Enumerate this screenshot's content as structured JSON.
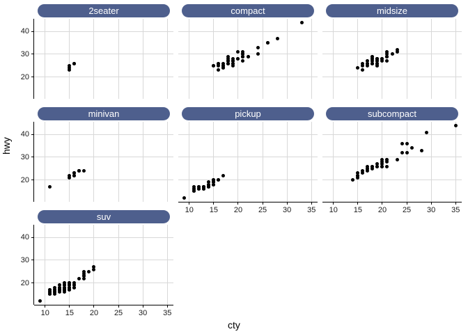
{
  "chart_data": {
    "type": "scatter",
    "title": "",
    "xlabel": "cty",
    "ylabel": "hwy",
    "x_domain": [
      7.76,
      36.24
    ],
    "y_domain": [
      10.4,
      45.6
    ],
    "x_ticks": [
      10,
      15,
      20,
      25,
      30,
      35
    ],
    "y_ticks": [
      20,
      30,
      40
    ],
    "grid": "major-only",
    "legend_position": "none",
    "facet_columns": 3,
    "colors": {
      "strip_bg": "#4e5f8d",
      "strip_text": "#ffffff",
      "gridline": "#d8d8d8",
      "axis_line": "#000000",
      "tick_label": "#1a1a1a",
      "point": "#000000",
      "panel_bg": "#ffffff",
      "background": "#ffffff"
    },
    "facets": [
      {
        "label": "2seater",
        "show_x_axis": false,
        "show_y_axis": true,
        "points": [
          [
            15,
            23
          ],
          [
            15,
            24
          ],
          [
            15,
            25
          ],
          [
            16,
            26
          ],
          [
            16,
            26
          ]
        ]
      },
      {
        "label": "compact",
        "show_x_axis": false,
        "show_y_axis": false,
        "points": [
          [
            15,
            25
          ],
          [
            15,
            25
          ],
          [
            16,
            23
          ],
          [
            16,
            25
          ],
          [
            16,
            26
          ],
          [
            16,
            26
          ],
          [
            17,
            24
          ],
          [
            17,
            24
          ],
          [
            17,
            25
          ],
          [
            17,
            25
          ],
          [
            17,
            25
          ],
          [
            17,
            26
          ],
          [
            18,
            26
          ],
          [
            18,
            26
          ],
          [
            18,
            26
          ],
          [
            18,
            27
          ],
          [
            18,
            27
          ],
          [
            18,
            27
          ],
          [
            18,
            28
          ],
          [
            18,
            29
          ],
          [
            19,
            25
          ],
          [
            19,
            26
          ],
          [
            19,
            26
          ],
          [
            19,
            27
          ],
          [
            19,
            27
          ],
          [
            19,
            27
          ],
          [
            19,
            28
          ],
          [
            20,
            28
          ],
          [
            20,
            28
          ],
          [
            20,
            31
          ],
          [
            21,
            27
          ],
          [
            21,
            29
          ],
          [
            21,
            29
          ],
          [
            21,
            29
          ],
          [
            21,
            29
          ],
          [
            21,
            29
          ],
          [
            21,
            30
          ],
          [
            21,
            30
          ],
          [
            21,
            31
          ],
          [
            22,
            29
          ],
          [
            22,
            29
          ],
          [
            24,
            30
          ],
          [
            24,
            33
          ],
          [
            26,
            35
          ],
          [
            26,
            35
          ],
          [
            28,
            37
          ],
          [
            33,
            44
          ]
        ]
      },
      {
        "label": "midsize",
        "show_x_axis": false,
        "show_y_axis": false,
        "points": [
          [
            15,
            24
          ],
          [
            16,
            23
          ],
          [
            16,
            25
          ],
          [
            16,
            26
          ],
          [
            17,
            25
          ],
          [
            17,
            26
          ],
          [
            17,
            26
          ],
          [
            17,
            27
          ],
          [
            18,
            26
          ],
          [
            18,
            26
          ],
          [
            18,
            26
          ],
          [
            18,
            26
          ],
          [
            18,
            27
          ],
          [
            18,
            28
          ],
          [
            18,
            28
          ],
          [
            18,
            29
          ],
          [
            18,
            29
          ],
          [
            19,
            25
          ],
          [
            19,
            25
          ],
          [
            19,
            26
          ],
          [
            19,
            26
          ],
          [
            19,
            26
          ],
          [
            19,
            27
          ],
          [
            19,
            27
          ],
          [
            19,
            28
          ],
          [
            19,
            28
          ],
          [
            19,
            28
          ],
          [
            19,
            28
          ],
          [
            20,
            27
          ],
          [
            20,
            28
          ],
          [
            20,
            28
          ],
          [
            21,
            27
          ],
          [
            21,
            29
          ],
          [
            21,
            29
          ],
          [
            21,
            29
          ],
          [
            21,
            29
          ],
          [
            21,
            30
          ],
          [
            21,
            31
          ],
          [
            22,
            30
          ],
          [
            23,
            31
          ],
          [
            23,
            32
          ]
        ]
      },
      {
        "label": "minivan",
        "show_x_axis": false,
        "show_y_axis": true,
        "points": [
          [
            11,
            17
          ],
          [
            15,
            21
          ],
          [
            15,
            22
          ],
          [
            16,
            22
          ],
          [
            16,
            22
          ],
          [
            16,
            23
          ],
          [
            16,
            23
          ],
          [
            17,
            24
          ],
          [
            17,
            24
          ],
          [
            17,
            24
          ],
          [
            18,
            24
          ]
        ]
      },
      {
        "label": "pickup",
        "show_x_axis": true,
        "show_y_axis": false,
        "points": [
          [
            9,
            12
          ],
          [
            11,
            15
          ],
          [
            11,
            15
          ],
          [
            11,
            16
          ],
          [
            11,
            16
          ],
          [
            11,
            17
          ],
          [
            12,
            16
          ],
          [
            12,
            16
          ],
          [
            12,
            17
          ],
          [
            12,
            17
          ],
          [
            13,
            16
          ],
          [
            13,
            16
          ],
          [
            13,
            17
          ],
          [
            13,
            17
          ],
          [
            13,
            17
          ],
          [
            13,
            17
          ],
          [
            13,
            17
          ],
          [
            14,
            17
          ],
          [
            14,
            17
          ],
          [
            14,
            17
          ],
          [
            14,
            17
          ],
          [
            14,
            18
          ],
          [
            14,
            18
          ],
          [
            14,
            19
          ],
          [
            15,
            18
          ],
          [
            15,
            18
          ],
          [
            15,
            19
          ],
          [
            15,
            19
          ],
          [
            15,
            20
          ],
          [
            15,
            20
          ],
          [
            16,
            20
          ],
          [
            16,
            20
          ],
          [
            17,
            22
          ]
        ]
      },
      {
        "label": "subcompact",
        "show_x_axis": true,
        "show_y_axis": false,
        "points": [
          [
            14,
            20
          ],
          [
            15,
            21
          ],
          [
            15,
            22
          ],
          [
            15,
            22
          ],
          [
            15,
            23
          ],
          [
            16,
            23
          ],
          [
            16,
            24
          ],
          [
            17,
            24
          ],
          [
            17,
            25
          ],
          [
            17,
            25
          ],
          [
            17,
            26
          ],
          [
            18,
            25
          ],
          [
            18,
            26
          ],
          [
            18,
            26
          ],
          [
            19,
            26
          ],
          [
            19,
            26
          ],
          [
            19,
            27
          ],
          [
            20,
            26
          ],
          [
            20,
            26
          ],
          [
            20,
            27
          ],
          [
            20,
            28
          ],
          [
            20,
            29
          ],
          [
            21,
            26
          ],
          [
            21,
            28
          ],
          [
            21,
            29
          ],
          [
            21,
            29
          ],
          [
            23,
            29
          ],
          [
            24,
            32
          ],
          [
            25,
            32
          ],
          [
            24,
            36
          ],
          [
            25,
            36
          ],
          [
            26,
            34
          ],
          [
            28,
            33
          ],
          [
            29,
            41
          ],
          [
            35,
            44
          ]
        ]
      },
      {
        "label": "suv",
        "show_x_axis": true,
        "show_y_axis": true,
        "points": [
          [
            9,
            12
          ],
          [
            11,
            15
          ],
          [
            11,
            15
          ],
          [
            11,
            15
          ],
          [
            11,
            16
          ],
          [
            11,
            16
          ],
          [
            11,
            16
          ],
          [
            11,
            17
          ],
          [
            11,
            17
          ],
          [
            12,
            15
          ],
          [
            12,
            16
          ],
          [
            12,
            16
          ],
          [
            12,
            16
          ],
          [
            12,
            17
          ],
          [
            12,
            17
          ],
          [
            12,
            18
          ],
          [
            13,
            16
          ],
          [
            13,
            17
          ],
          [
            13,
            17
          ],
          [
            13,
            17
          ],
          [
            13,
            17
          ],
          [
            13,
            17
          ],
          [
            13,
            18
          ],
          [
            13,
            18
          ],
          [
            13,
            19
          ],
          [
            14,
            16
          ],
          [
            14,
            17
          ],
          [
            14,
            17
          ],
          [
            14,
            17
          ],
          [
            14,
            17
          ],
          [
            14,
            17
          ],
          [
            14,
            17
          ],
          [
            14,
            18
          ],
          [
            14,
            18
          ],
          [
            14,
            18
          ],
          [
            14,
            19
          ],
          [
            14,
            19
          ],
          [
            14,
            20
          ],
          [
            15,
            17
          ],
          [
            15,
            17
          ],
          [
            15,
            18
          ],
          [
            15,
            18
          ],
          [
            15,
            18
          ],
          [
            15,
            19
          ],
          [
            15,
            19
          ],
          [
            15,
            19
          ],
          [
            15,
            20
          ],
          [
            15,
            20
          ],
          [
            16,
            18
          ],
          [
            16,
            18
          ],
          [
            16,
            19
          ],
          [
            16,
            19
          ],
          [
            16,
            20
          ],
          [
            17,
            22
          ],
          [
            18,
            22
          ],
          [
            18,
            23
          ],
          [
            18,
            23
          ],
          [
            18,
            24
          ],
          [
            18,
            25
          ],
          [
            19,
            25
          ],
          [
            20,
            26
          ],
          [
            20,
            27
          ]
        ]
      }
    ]
  }
}
